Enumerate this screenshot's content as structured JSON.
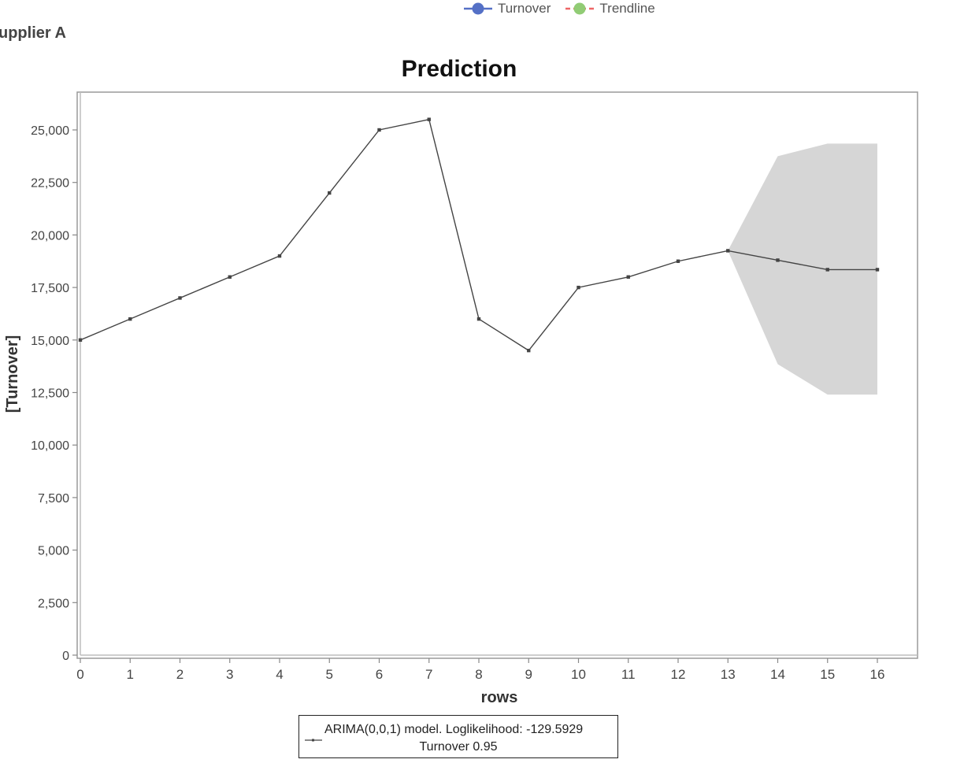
{
  "page": {
    "supplier_label": "upplier A"
  },
  "top_legend": [
    {
      "label": "Turnover",
      "color": "#5470c6",
      "line": "solid"
    },
    {
      "label": "Trendline",
      "color": "#91cc75",
      "line": "#ee6666"
    }
  ],
  "chart_data": {
    "type": "line",
    "title": "Prediction",
    "xlabel": "rows",
    "ylabel": "[Turnover]",
    "xlim": [
      0,
      16
    ],
    "ylim": [
      0,
      25000
    ],
    "x_ticks": [
      0,
      1,
      2,
      3,
      4,
      5,
      6,
      7,
      8,
      9,
      10,
      11,
      12,
      13,
      14,
      15,
      16
    ],
    "y_ticks": [
      0,
      2500,
      5000,
      7500,
      10000,
      12500,
      15000,
      17500,
      20000,
      22500,
      25000
    ],
    "y_tick_labels": [
      "0",
      "2,500",
      "5,000",
      "7,500",
      "10,000",
      "12,500",
      "15,000",
      "17,500",
      "20,000",
      "22,500",
      "25,000"
    ],
    "series": [
      {
        "x": [
          0,
          1,
          2,
          3,
          4,
          5,
          6,
          7,
          8,
          9,
          10,
          11,
          12,
          13,
          14,
          15,
          16
        ],
        "values": [
          15000,
          16000,
          17000,
          18000,
          19000,
          22000,
          25000,
          25500,
          16000,
          14500,
          17500,
          18000,
          18750,
          19250,
          18800,
          18350,
          18350
        ],
        "color": "#444444"
      }
    ],
    "confidence_band": {
      "x": [
        13,
        14,
        15,
        16
      ],
      "upper": [
        19250,
        23750,
        24350,
        24350
      ],
      "lower": [
        19250,
        13850,
        12400,
        12400
      ],
      "color": "#d6d6d6"
    },
    "legend": {
      "placement": "bottom-center",
      "line1": "ARIMA(0,0,1) model. Loglikelihood: -129.5929",
      "line2": "Turnover 0.95"
    }
  }
}
